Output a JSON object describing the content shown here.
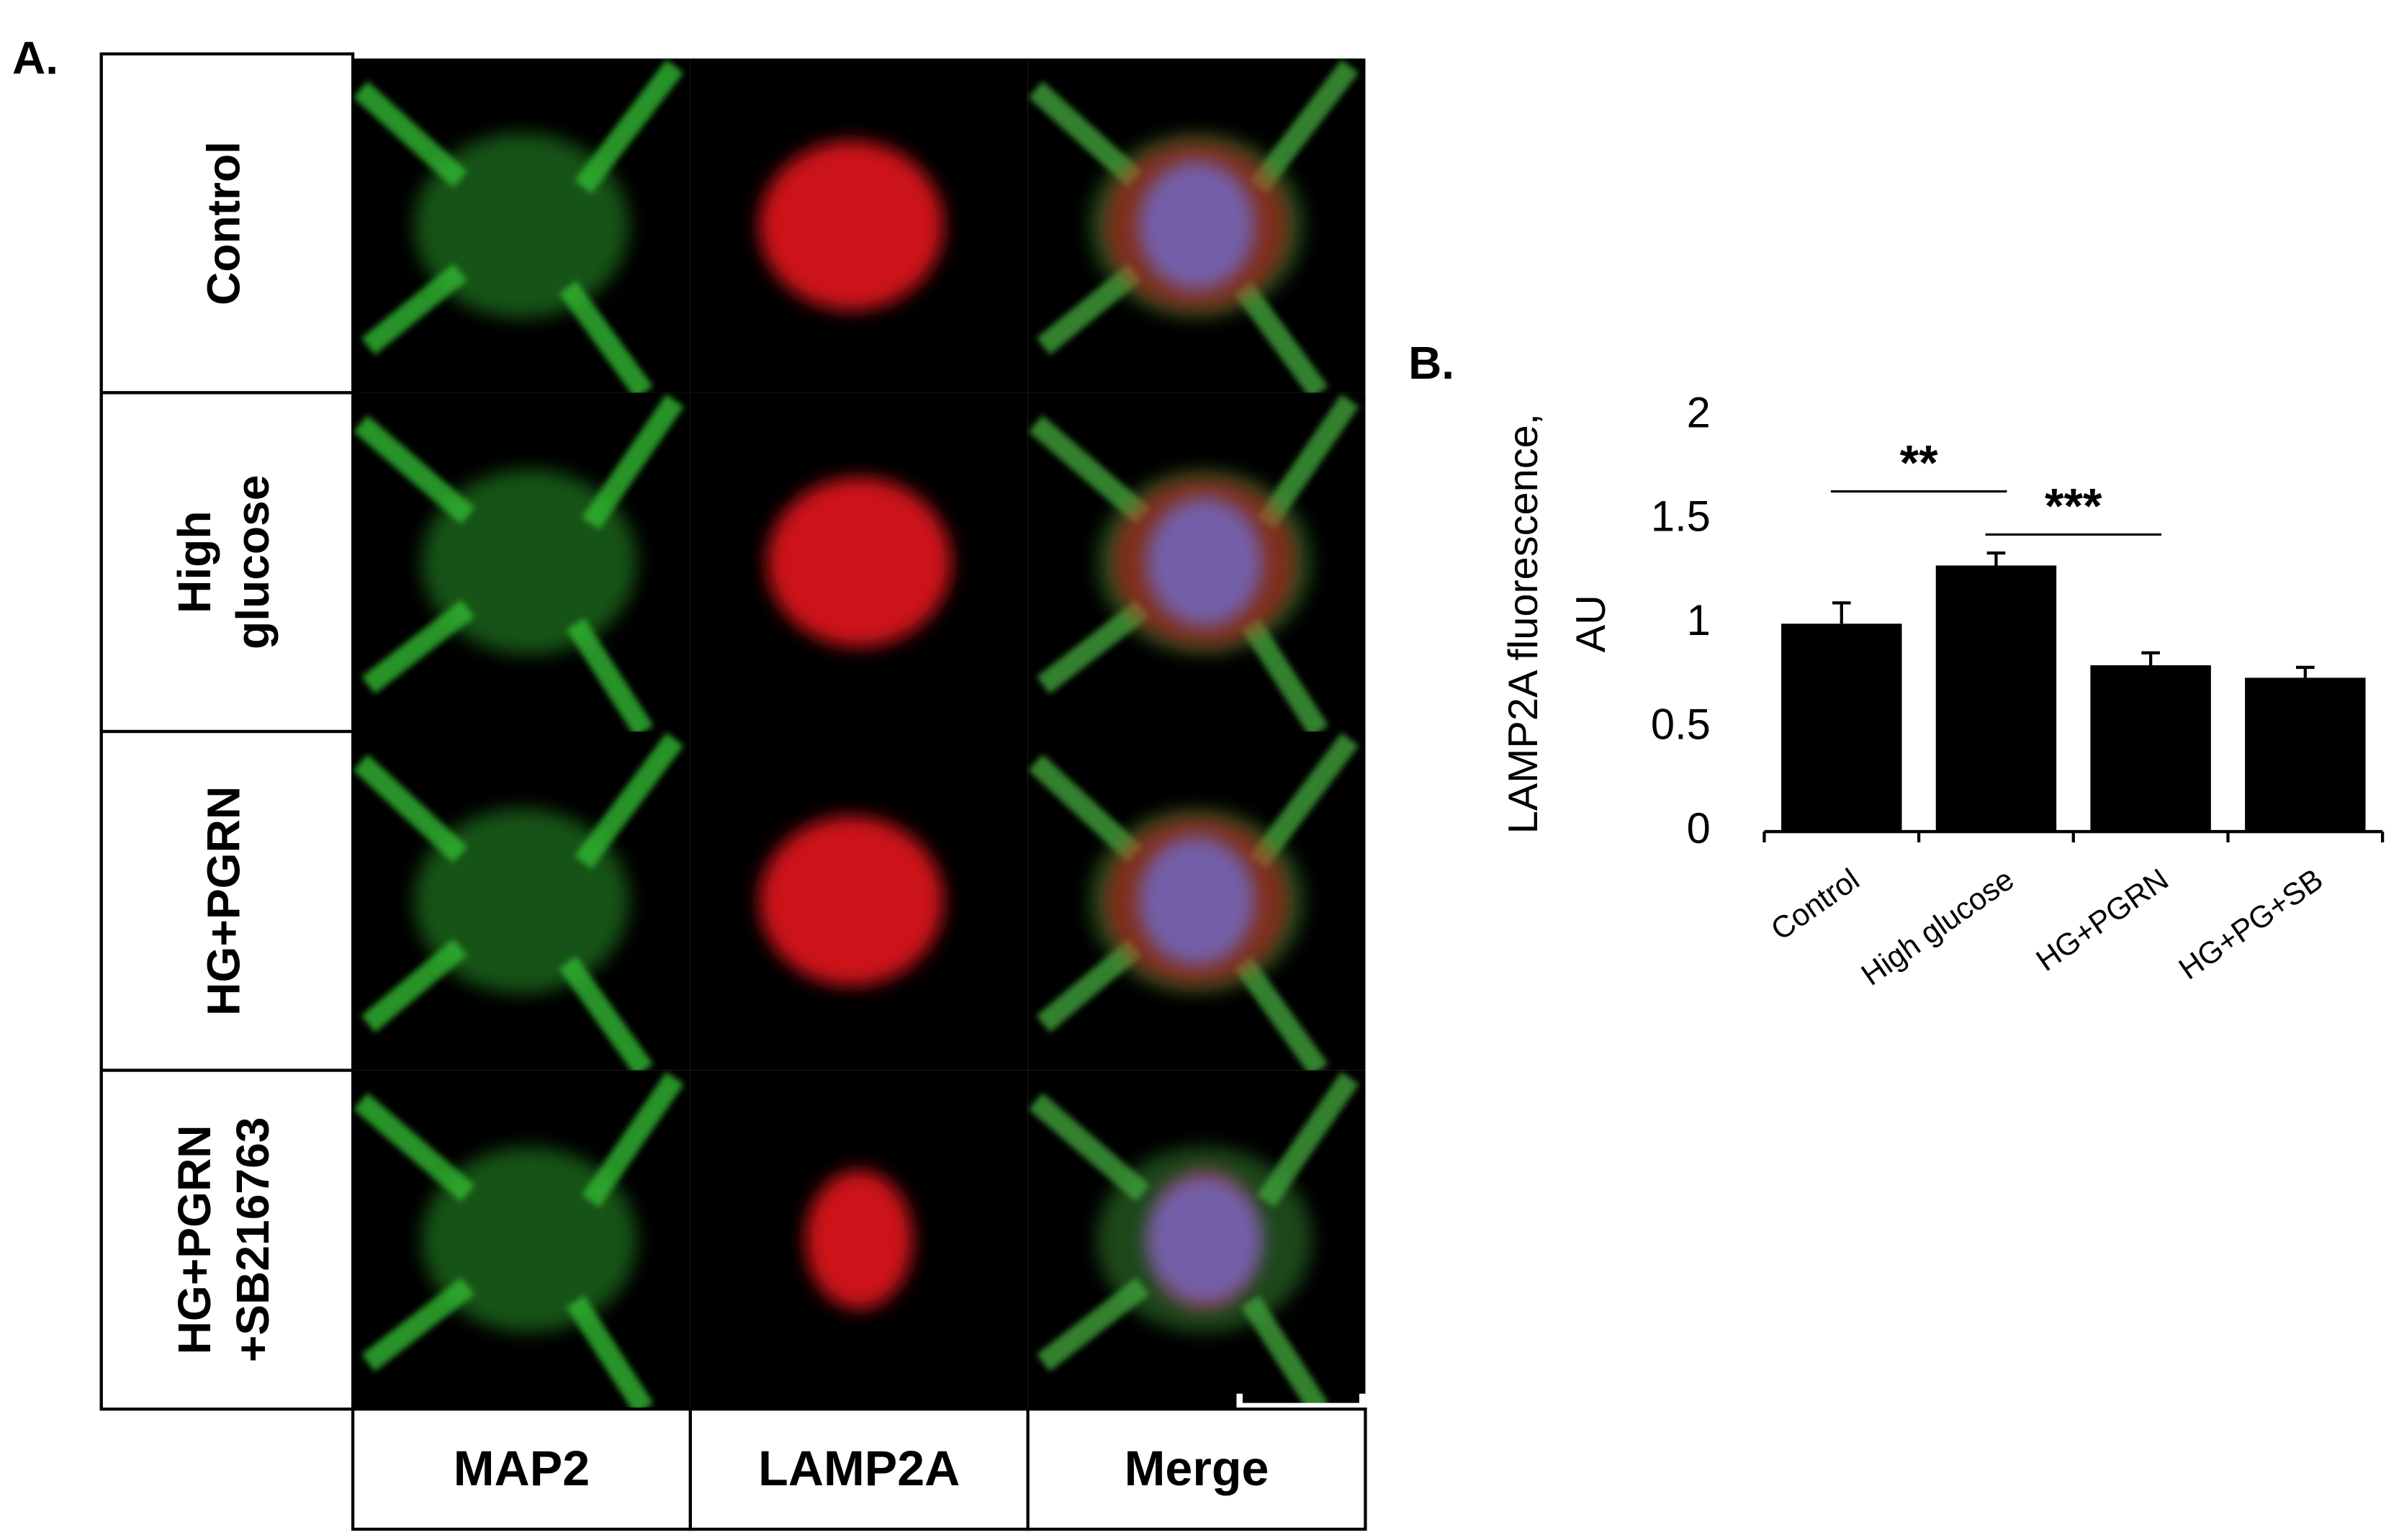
{
  "panel_a": {
    "label": "A.",
    "rows": [
      [
        "Control"
      ],
      [
        "High",
        "glucose"
      ],
      [
        "HG+PGRN"
      ],
      [
        "HG+PGRN",
        "+SB216763"
      ]
    ],
    "columns": [
      "MAP2",
      "LAMP2A",
      "Merge"
    ]
  },
  "chart_data": {
    "type": "bar",
    "label": "B.",
    "y_label": [
      "LAMP2A fluorescence,",
      "AU"
    ],
    "categories": [
      "Control",
      "High glucose",
      "HG+PGRN",
      "HG+PG+SB"
    ],
    "values": [
      1.0,
      1.28,
      0.8,
      0.74
    ],
    "errors": [
      0.1,
      0.06,
      0.06,
      0.05
    ],
    "color": "#000000",
    "ylim": [
      0,
      2
    ],
    "yticks": [
      0,
      0.5,
      1,
      1.5,
      2
    ],
    "significance": [
      {
        "text": "**",
        "between": [
          0,
          1
        ]
      },
      {
        "text": "***",
        "between": [
          1,
          2
        ]
      }
    ]
  }
}
